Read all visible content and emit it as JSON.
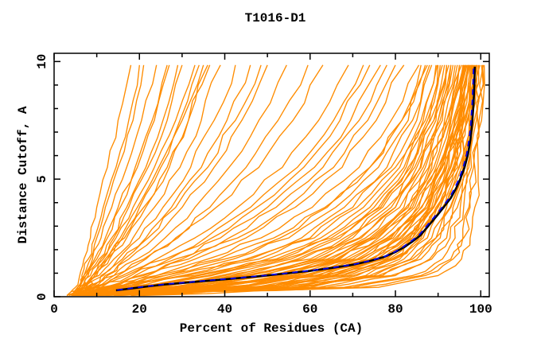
{
  "chart_data": {
    "type": "line",
    "title": "T1016-D1",
    "xlabel": "Percent of Residues (CA)",
    "ylabel": "Distance Cutoff, A",
    "xlim": [
      0,
      102
    ],
    "ylim": [
      0,
      10.35
    ],
    "x_major_ticks": [
      0,
      20,
      40,
      60,
      80,
      100
    ],
    "x_minor_ticks": [
      10,
      30,
      50,
      70,
      90
    ],
    "y_major_ticks": [
      0,
      5,
      10
    ],
    "y_minor_ticks": [
      1,
      2,
      3,
      4,
      6,
      7,
      8,
      9
    ],
    "grid": false,
    "legend": "none",
    "colors": {
      "background": "#ffffff",
      "axis": "#000000",
      "models": "#ff8c00",
      "highlight_primary": "#000000",
      "highlight_secondary": "#0000ee"
    },
    "series_notes": {
      "models": "ensemble of prediction model curves (orange), cumulative percent of CA residues under distance cutoff",
      "highlight_primary": "selected model curve (thick black)",
      "highlight_secondary": "companion model curve (blue, dashed, nearly coincident with black)"
    },
    "y_grid": [
      0.05,
      0.4,
      0.9,
      1.6,
      2.5,
      3.8,
      5.5,
      7.5,
      9.85
    ],
    "model_curves": [
      [
        5,
        14,
        28,
        45,
        58,
        68,
        78,
        84,
        88
      ],
      [
        6,
        18,
        34,
        52,
        64,
        74,
        82,
        87,
        90
      ],
      [
        4,
        22,
        40,
        57,
        68,
        77,
        84,
        89,
        92
      ],
      [
        7,
        26,
        45,
        62,
        72,
        80,
        86,
        90,
        93
      ],
      [
        5,
        30,
        50,
        66,
        75,
        83,
        88,
        92,
        95
      ],
      [
        6,
        34,
        54,
        69,
        78,
        85,
        90,
        93,
        96
      ],
      [
        7,
        38,
        58,
        72,
        80,
        87,
        91,
        94,
        96.5
      ],
      [
        5,
        42,
        62,
        75,
        82,
        88,
        92,
        95,
        97
      ],
      [
        6,
        46,
        65,
        77,
        84,
        89,
        93,
        95.5,
        97.5
      ],
      [
        7,
        50,
        68,
        79,
        85,
        90,
        94,
        96,
        98
      ],
      [
        4,
        16,
        31,
        48,
        61,
        71,
        80,
        86,
        89.5
      ],
      [
        5,
        20,
        37,
        54,
        66,
        76,
        83,
        88,
        91
      ],
      [
        6,
        24,
        43,
        60,
        70,
        79,
        85,
        89.5,
        92.5
      ],
      [
        7,
        28,
        48,
        64,
        74,
        82,
        87,
        91,
        94
      ],
      [
        4,
        32,
        52,
        67,
        76,
        84,
        89,
        92.5,
        95.5
      ],
      [
        5,
        36,
        56,
        71,
        79,
        86,
        90.5,
        93.5,
        96.2
      ],
      [
        7,
        40,
        60,
        74,
        81,
        87.5,
        91.5,
        94.5,
        96.8
      ],
      [
        6,
        44,
        63,
        76,
        83,
        88.5,
        92.5,
        95.2,
        97.2
      ],
      [
        5,
        48,
        66,
        78,
        84.5,
        89.5,
        93.5,
        95.8,
        97.8
      ],
      [
        7,
        52,
        70,
        80,
        86,
        90.5,
        94.5,
        96.5,
        98.2
      ],
      [
        4,
        15,
        30,
        46,
        60,
        70,
        79,
        85,
        88.5
      ],
      [
        6,
        19,
        36,
        53,
        65,
        75,
        82.5,
        87.5,
        90.5
      ],
      [
        5,
        23,
        42,
        58,
        69,
        78,
        84.5,
        89,
        92
      ],
      [
        7,
        27,
        46,
        63,
        73,
        81,
        86.5,
        90.5,
        93.5
      ],
      [
        5,
        31,
        51,
        66.5,
        75.5,
        83.5,
        88.5,
        92,
        95
      ],
      [
        6,
        35,
        55,
        70,
        78.5,
        85.5,
        90,
        93,
        96
      ],
      [
        7,
        39,
        59,
        73,
        80.5,
        87,
        91,
        94,
        96.6
      ],
      [
        4,
        43,
        62.5,
        75.5,
        82.5,
        88,
        92,
        95,
        97.1
      ],
      [
        7,
        47,
        65.5,
        77.5,
        84,
        89,
        93,
        95.6,
        97.6
      ],
      [
        5,
        51,
        69,
        79.5,
        85.5,
        90,
        94,
        96.2,
        98
      ],
      [
        6,
        17,
        33,
        50,
        62.5,
        72.5,
        81,
        86.5,
        89.8
      ],
      [
        4,
        21,
        39,
        55.5,
        67,
        76.5,
        83.5,
        88.2,
        91.5
      ],
      [
        6,
        25,
        44.5,
        61,
        71.5,
        80,
        85.8,
        90,
        93
      ],
      [
        5,
        29,
        49,
        65,
        74.5,
        82.5,
        87.8,
        91.5,
        94.5
      ],
      [
        7,
        33,
        53,
        68,
        77,
        84.5,
        89.5,
        92.8,
        95.8
      ],
      [
        6,
        37,
        57,
        71.5,
        79.5,
        86.2,
        90.8,
        93.8,
        96.4
      ],
      [
        4,
        41,
        61,
        74.5,
        81.5,
        87.8,
        91.8,
        94.8,
        97
      ],
      [
        6,
        45,
        64,
        76.5,
        83.5,
        88.8,
        92.8,
        95.4,
        97.4
      ],
      [
        7,
        49,
        67,
        78.5,
        85,
        89.8,
        93.8,
        96,
        97.9
      ],
      [
        5,
        53,
        71,
        81,
        86.5,
        91,
        94.8,
        96.8,
        98.4
      ],
      [
        6,
        55,
        73,
        82,
        87.5,
        91.5,
        95,
        97,
        98.6
      ],
      [
        4,
        13,
        26,
        42,
        55,
        66,
        76,
        83,
        87
      ],
      [
        6,
        12,
        24,
        40,
        53,
        64,
        74,
        81.5,
        86
      ],
      [
        5,
        57,
        75,
        83.5,
        88.5,
        92,
        95.5,
        97.3,
        98.8
      ],
      [
        6,
        60,
        77,
        85,
        89.5,
        92.8,
        96,
        97.6,
        99
      ],
      [
        10,
        64,
        80,
        88,
        92,
        94.5,
        96.8,
        98.2,
        99.5
      ],
      [
        12,
        68,
        84,
        91,
        94,
        96,
        97.8,
        99,
        100.2
      ],
      [
        15,
        72,
        87,
        93.5,
        96,
        97.5,
        98.6,
        99.6,
        100.6
      ],
      [
        9,
        58,
        76,
        86,
        90.5,
        93.5,
        96.2,
        97.9,
        99.2
      ],
      [
        18,
        76,
        90,
        95.5,
        97.5,
        98.6,
        99.4,
        100.2,
        100.8
      ],
      [
        3,
        5,
        6,
        7,
        8.5,
        10,
        12.5,
        15,
        18
      ],
      [
        4,
        6,
        7,
        8.5,
        10,
        12,
        15,
        18.5,
        21
      ],
      [
        4.5,
        5.5,
        7,
        9,
        11,
        13.5,
        17,
        20.5,
        24
      ],
      [
        5,
        6.5,
        8,
        10,
        12.5,
        15.5,
        19.5,
        23.5,
        27
      ],
      [
        6,
        7,
        9,
        11.5,
        14,
        17.5,
        22,
        26.5,
        30
      ],
      [
        3,
        6,
        8.5,
        11,
        14.5,
        18.5,
        23.5,
        28.5,
        33
      ],
      [
        5.5,
        7.5,
        10,
        13,
        17,
        21.5,
        27,
        31.5,
        36
      ],
      [
        5,
        7,
        10.5,
        14,
        18.5,
        23.5,
        29.5,
        34.5,
        39
      ],
      [
        6,
        8,
        11,
        15,
        20,
        25.5,
        32,
        37.5,
        42.5
      ],
      [
        4.5,
        7,
        11.5,
        16,
        21.5,
        27.5,
        34.5,
        40.5,
        46
      ],
      [
        5,
        8,
        12.5,
        17.5,
        23.5,
        30,
        37.5,
        44,
        50
      ],
      [
        6,
        9,
        14,
        19.5,
        26,
        33,
        41,
        48,
        54.5
      ],
      [
        5,
        9.5,
        15,
        21.5,
        28.5,
        36.5,
        45,
        52.5,
        59.5
      ],
      [
        3.5,
        6,
        7.5,
        9.5,
        12,
        15,
        19,
        23,
        26.5
      ],
      [
        4,
        6,
        6.5,
        8,
        9.5,
        11.5,
        14.5,
        17.5,
        20
      ],
      [
        6,
        7.5,
        9.5,
        12.5,
        16,
        20,
        25,
        29.5,
        34
      ],
      [
        3,
        5.5,
        7.5,
        10.5,
        13.5,
        17,
        21.5,
        25.5,
        29
      ],
      [
        5,
        7,
        9,
        12,
        15.5,
        19.5,
        24.5,
        30,
        35
      ],
      [
        6,
        8.5,
        12,
        16.5,
        22,
        28.5,
        36,
        42.5,
        48.5
      ],
      [
        4.5,
        6.5,
        9,
        12.5,
        16.5,
        21,
        26.5,
        31.5,
        36.5
      ],
      [
        5,
        9,
        14,
        21,
        29,
        38,
        48,
        56,
        63
      ],
      [
        6,
        10,
        16,
        24,
        33,
        43,
        53.5,
        62,
        69
      ],
      [
        4,
        11,
        18,
        27,
        37,
        47.5,
        58.5,
        67,
        74
      ],
      [
        7,
        12,
        20,
        30,
        41,
        52,
        63,
        71.5,
        78
      ],
      [
        5,
        13,
        22,
        33,
        45,
        56.5,
        67.5,
        75.5,
        82
      ],
      [
        6,
        14,
        24,
        36,
        48.5,
        60.5,
        71.5,
        79,
        85.5
      ],
      [
        4,
        10,
        17,
        26,
        35.5,
        46,
        57,
        65.5,
        72.5
      ],
      [
        7,
        11,
        19,
        28.5,
        39,
        50,
        61,
        69.5,
        76.5
      ],
      [
        5,
        12,
        21,
        31.5,
        43,
        54.5,
        65.5,
        73.5,
        80
      ],
      [
        6,
        15,
        26,
        38.5,
        51.5,
        63.5,
        74,
        81.5,
        87.5
      ],
      [
        8,
        56,
        74,
        84,
        89.5,
        93,
        95.8,
        97.6,
        99.1
      ],
      [
        20,
        70,
        86,
        93,
        95.8,
        97.2,
        98.3,
        99.3,
        100.4
      ],
      [
        14,
        62,
        79,
        88.5,
        92.8,
        95.2,
        97.2,
        98.5,
        99.8
      ]
    ],
    "black_curve": [
      [
        14.5,
        0.27
      ],
      [
        18,
        0.35
      ],
      [
        22,
        0.44
      ],
      [
        26,
        0.52
      ],
      [
        31,
        0.6
      ],
      [
        36,
        0.68
      ],
      [
        42,
        0.77
      ],
      [
        48,
        0.87
      ],
      [
        54,
        0.98
      ],
      [
        60,
        1.1
      ],
      [
        65,
        1.22
      ],
      [
        70,
        1.36
      ],
      [
        74,
        1.52
      ],
      [
        77.5,
        1.7
      ],
      [
        80,
        1.9
      ],
      [
        82,
        2.1
      ],
      [
        84,
        2.35
      ],
      [
        85.8,
        2.6
      ],
      [
        87.2,
        2.9
      ],
      [
        88.6,
        3.2
      ],
      [
        90,
        3.5
      ],
      [
        91.5,
        3.85
      ],
      [
        93,
        4.2
      ],
      [
        94.2,
        4.6
      ],
      [
        95.2,
        5.0
      ],
      [
        96.2,
        5.5
      ],
      [
        97,
        6.05
      ],
      [
        97.6,
        6.7
      ],
      [
        98,
        7.4
      ],
      [
        98.3,
        8.2
      ],
      [
        98.5,
        9.0
      ],
      [
        98.6,
        9.78
      ]
    ],
    "blue_curve": [
      [
        14.8,
        0.25
      ],
      [
        18.2,
        0.33
      ],
      [
        22.2,
        0.42
      ],
      [
        26.2,
        0.5
      ],
      [
        31.2,
        0.58
      ],
      [
        36.2,
        0.66
      ],
      [
        42.2,
        0.75
      ],
      [
        48.2,
        0.85
      ],
      [
        54.2,
        0.96
      ],
      [
        60.2,
        1.08
      ],
      [
        65.2,
        1.2
      ],
      [
        70.2,
        1.34
      ],
      [
        74.1,
        1.5
      ],
      [
        77.6,
        1.68
      ],
      [
        79.9,
        1.88
      ],
      [
        81.8,
        2.08
      ],
      [
        83.7,
        2.33
      ],
      [
        85.5,
        2.58
      ],
      [
        86.9,
        2.88
      ],
      [
        88.3,
        3.18
      ],
      [
        89.7,
        3.48
      ],
      [
        91.2,
        3.83
      ],
      [
        92.7,
        4.18
      ],
      [
        93.9,
        4.58
      ],
      [
        94.9,
        4.98
      ],
      [
        95.9,
        5.48
      ],
      [
        96.7,
        6.03
      ],
      [
        97.3,
        6.68
      ],
      [
        97.7,
        7.38
      ],
      [
        98.0,
        8.18
      ],
      [
        98.2,
        8.98
      ],
      [
        98.3,
        9.78
      ]
    ]
  }
}
